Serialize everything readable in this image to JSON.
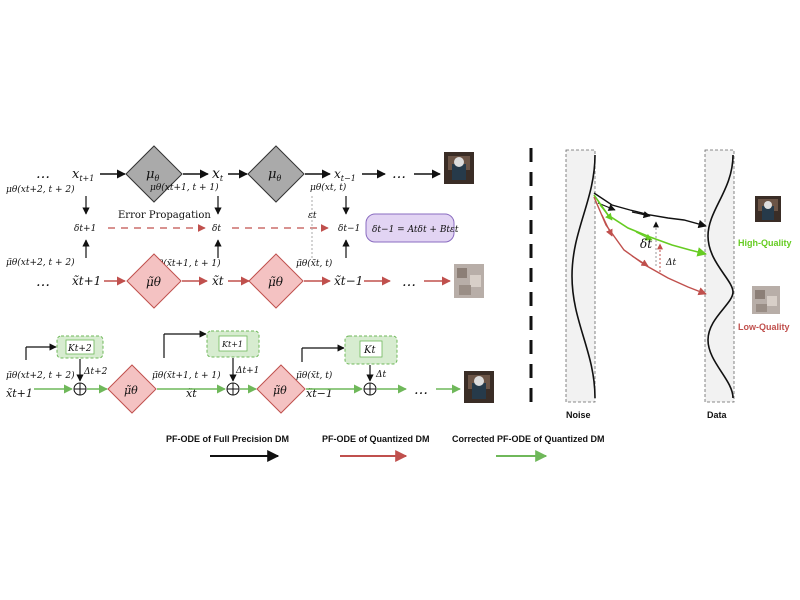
{
  "colors": {
    "black": "#111111",
    "red": "#c0504d",
    "green": "#6fb85a",
    "bright_green": "#66cc22",
    "gray_diamond": "#aaaaaa",
    "pink_diamond": "#f4c2c2",
    "green_box": "#d7ecd0",
    "purple_box": "#e2d4f3",
    "band_fill": "#f2f2f2"
  },
  "top": {
    "dots": "…",
    "x_t1": "x",
    "x_t1_sub": "t+1",
    "x_t": "x",
    "x_t_sub": "t",
    "x_tm1": "x",
    "x_tm1_sub": "t−1",
    "mu": "μ",
    "mu_sub": "θ",
    "mu_left": "μθ(xt+2, t + 2)",
    "mu_mid": "μθ(xt+1, t + 1)",
    "mu_right": "μθ(xt, t)",
    "delta_t1": "δt+1",
    "delta_t": "δt",
    "delta_tm1": "δt−1",
    "epsilon": "εt",
    "error_propagation": "Error Propagation",
    "equation": "δt−1 = Atδt + Btεt"
  },
  "quant": {
    "x_t1": "x̃t+1",
    "x_t": "x̃t",
    "x_tm1": "x̃t−1",
    "mu_tilde": "μ̃θ",
    "mu_left": "μ̃θ(xt+2, t + 2)",
    "mu_mid": "μ̃θ(x̃t+1, t + 1)",
    "mu_right": "μ̃θ(x̃t, t)"
  },
  "corrected": {
    "k1": "Kt+2",
    "k2": "Kt+1",
    "k3": "Kt",
    "d1": "Δt+2",
    "d2": "Δt+1",
    "d3": "Δt",
    "mu_left": "μ̃θ(xt+2, t + 2)",
    "mu_mid": "μ̃θ(x̃t+1, t + 1)",
    "mu_right": "μ̃θ(x̃t, t)",
    "x_t1": "x̃t+1",
    "x_t": "x̃t",
    "x_tm1": "x̃t−1",
    "mu_tilde": "μ̃θ",
    "dots": "…"
  },
  "legend": {
    "full": "PF-ODE of Full Precision DM",
    "quant": "PF-ODE of Quantized DM",
    "corrected": "Corrected PF-ODE of Quantized DM"
  },
  "right": {
    "noise": "Noise",
    "data": "Data",
    "delta": "δt",
    "Delta": "Δt",
    "high": "High-Quality",
    "low": "Low-Quality"
  }
}
